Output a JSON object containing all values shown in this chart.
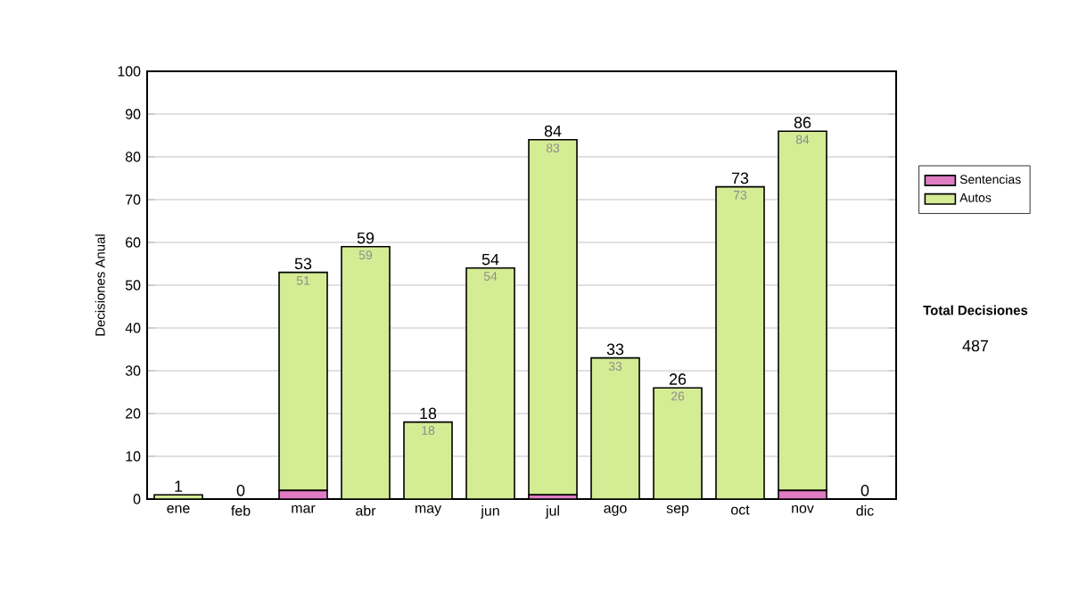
{
  "chart_data": {
    "type": "bar",
    "stacked": true,
    "ylabel": "Decisiones Anual",
    "categories": [
      "ene",
      "feb",
      "mar",
      "abr",
      "may",
      "jun",
      "jul",
      "ago",
      "sep",
      "oct",
      "nov",
      "dic"
    ],
    "series": [
      {
        "name": "Sentencias",
        "color": "#e07cc4",
        "values": [
          0,
          0,
          2,
          0,
          0,
          0,
          1,
          0,
          0,
          0,
          2,
          0
        ]
      },
      {
        "name": "Autos",
        "color": "#d4ec94",
        "values": [
          1,
          0,
          51,
          59,
          18,
          54,
          83,
          33,
          26,
          73,
          84,
          0
        ],
        "value_labels": [
          null,
          null,
          "51",
          "59",
          "18",
          "54",
          "83",
          "33",
          "26",
          "73",
          "84",
          null
        ]
      }
    ],
    "totals": [
      "1",
      "0",
      "53",
      "59",
      "18",
      "54",
      "84",
      "33",
      "26",
      "73",
      "86",
      "0"
    ],
    "ylim": [
      0,
      100
    ],
    "yticks": [
      0,
      10,
      20,
      30,
      40,
      50,
      60,
      70,
      80,
      90,
      100
    ],
    "grid": "y",
    "legend": "right",
    "annotations": [
      "Total Decisiones",
      "487"
    ]
  }
}
